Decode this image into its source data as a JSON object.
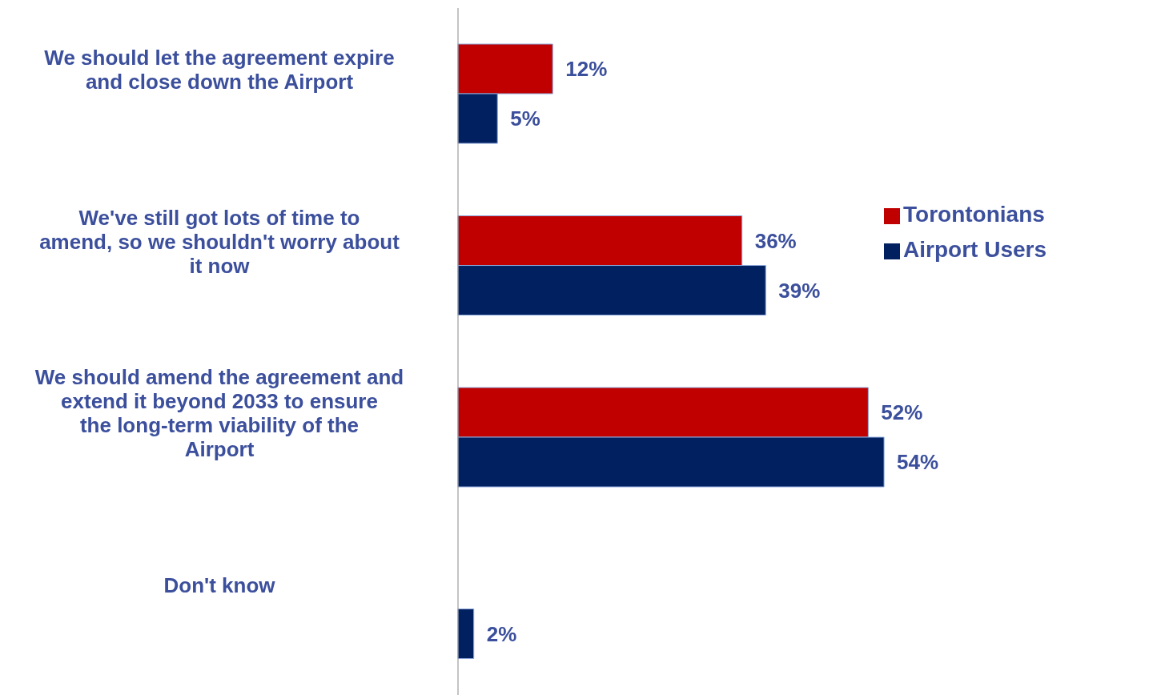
{
  "chart_data": {
    "type": "bar",
    "orientation": "horizontal",
    "categories": [
      "We should let the agreement expire and close down the Airport",
      "We've still got lots of time to amend, so we shouldn't worry about it now",
      "We should amend the agreement and extend it beyond 2033 to ensure the long-term viability of the Airport",
      "Don't know"
    ],
    "series": [
      {
        "name": "Torontonians",
        "color": "#c00000",
        "values": [
          12,
          36,
          52,
          null
        ],
        "value_labels": [
          "12%",
          "36%",
          "52%",
          null
        ]
      },
      {
        "name": "Airport Users",
        "color": "#002060",
        "values": [
          5,
          39,
          54,
          2
        ],
        "value_labels": [
          "5%",
          "39%",
          "54%",
          "2%"
        ]
      }
    ],
    "legend": "right"
  }
}
